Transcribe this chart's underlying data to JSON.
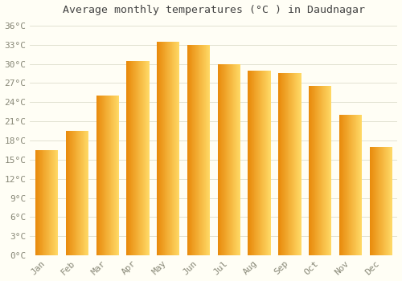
{
  "title": "Average monthly temperatures (°C ) in Daudnagar",
  "months": [
    "Jan",
    "Feb",
    "Mar",
    "Apr",
    "May",
    "Jun",
    "Jul",
    "Aug",
    "Sep",
    "Oct",
    "Nov",
    "Dec"
  ],
  "values": [
    16.5,
    19.5,
    25.0,
    30.5,
    33.5,
    33.0,
    30.0,
    29.0,
    28.5,
    26.5,
    22.0,
    17.0
  ],
  "bar_color_left": "#E8890A",
  "bar_color_right": "#FFD966",
  "ylim": [
    0,
    37
  ],
  "yticks": [
    0,
    3,
    6,
    9,
    12,
    15,
    18,
    21,
    24,
    27,
    30,
    33,
    36
  ],
  "background_color": "#fffef5",
  "plot_bg_color": "#fffef5",
  "grid_color": "#ddddcc",
  "title_fontsize": 9.5,
  "tick_fontsize": 8,
  "font_family": "monospace"
}
